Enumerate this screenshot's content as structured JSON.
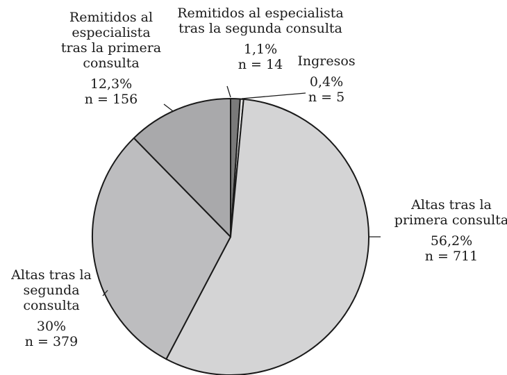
{
  "chart_data": {
    "type": "pie",
    "title": "",
    "slices": [
      {
        "label_lines": [
          "Remitidos al especialista",
          "tras la segunda consulta"
        ],
        "percent_text": "1,1%",
        "n_text": "n = 14",
        "percent": 1.1,
        "n": 14,
        "color": "#7a7a7a"
      },
      {
        "label_lines": [
          "Ingresos"
        ],
        "percent_text": "0,4%",
        "n_text": "n = 5",
        "percent": 0.4,
        "n": 5,
        "color": "#ebebeb"
      },
      {
        "label_lines": [
          "Altas tras la",
          "primera consulta"
        ],
        "percent_text": "56,2%",
        "n_text": "n = 711",
        "percent": 56.2,
        "n": 711,
        "color": "#d4d4d5"
      },
      {
        "label_lines": [
          "Altas tras la",
          "segunda",
          "consulta"
        ],
        "percent_text": "30%",
        "n_text": "n = 379",
        "percent": 30,
        "n": 379,
        "color": "#bdbdbf"
      },
      {
        "label_lines": [
          "Remitidos al",
          "especialista",
          "tras la primera",
          "consulta"
        ],
        "percent_text": "12,3%",
        "n_text": "n = 156",
        "percent": 12.3,
        "n": 156,
        "color": "#a9a9ab"
      }
    ]
  }
}
